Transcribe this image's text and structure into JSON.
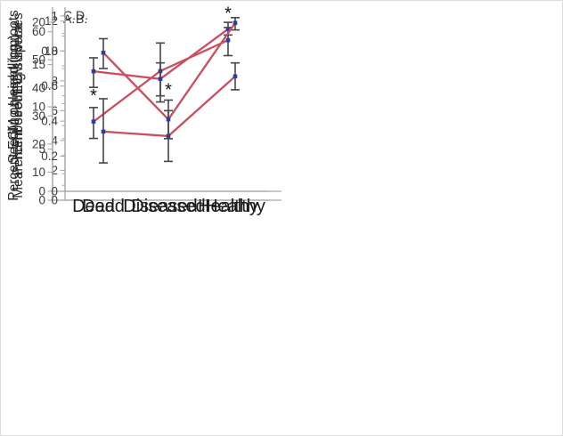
{
  "figure": {
    "type": "multi-panel-line-chart",
    "panels_grid": "2x2",
    "background": "#ffffff",
    "border_color": "#dcdcdc"
  },
  "colors": {
    "line": "#cb4e5e",
    "marker": "#2e3e9d",
    "error_bar": "#46464a",
    "axis": "#a9a9a9",
    "tick_text": "#3c3c3c",
    "category_text": "#1b1b1b",
    "ylabel_text": "#2a2a2a",
    "panel_letter_text": "#333333",
    "asterisk": "#111111"
  },
  "categories": [
    "Dead",
    "Diseased",
    "Healthy"
  ],
  "chart_data": [
    {
      "type": "line",
      "panel_letter": "A.",
      "ylabel": "Percent ECM on seedling roots",
      "categories": [
        "Dead",
        "Diseased",
        "Healthy"
      ],
      "values": [
        28,
        46,
        57
      ],
      "error_low": [
        22,
        35,
        51.5
      ],
      "error_high": [
        33,
        56,
        61.5
      ],
      "significance_asterisks": [
        {
          "category": "Dead",
          "y": 38
        }
      ],
      "yticks": [
        0,
        10,
        20,
        30,
        40,
        50,
        60
      ],
      "ylim": [
        0,
        67.5
      ],
      "minor_tick_step": null,
      "show_x_labels": false,
      "grid": false,
      "legend": false
    },
    {
      "type": "line",
      "panel_letter": "B.",
      "ylabel": "Mean number of ECM species",
      "categories": [
        "Dead",
        "Diseased",
        "Healthy"
      ],
      "values": [
        4.6,
        4.3,
        8.3
      ],
      "error_low": [
        2.5,
        2.6,
        7.4
      ],
      "error_high": [
        6.8,
        6.0,
        9.2
      ],
      "significance_asterisks": [],
      "yticks": [
        0,
        2,
        4,
        6,
        8,
        10,
        12
      ],
      "ylim": [
        0,
        12.7
      ],
      "minor_tick_step": 1,
      "show_x_labels": false,
      "grid": false,
      "legend": false
    },
    {
      "type": "line",
      "panel_letter": "C.",
      "ylabel": "Seedling Height (cm)",
      "categories": [
        "Dead",
        "Diseased",
        "Healthy"
      ],
      "values": [
        14.2,
        13.3,
        19.2
      ],
      "error_low": [
        12.3,
        11.3,
        18.5
      ],
      "error_high": [
        15.8,
        15.2,
        20.0
      ],
      "significance_asterisks": [
        {
          "category": "Healthy",
          "y": 21.3
        }
      ],
      "yticks": [
        0,
        5,
        10,
        15,
        20
      ],
      "ylim": [
        0,
        21.8
      ],
      "minor_tick_step": null,
      "show_x_labels": true,
      "grid": false,
      "legend": false
    },
    {
      "type": "line",
      "panel_letter": "D.",
      "ylabel": "Percent seedling survival",
      "categories": [
        "Dead",
        "Diseased",
        "Healthy"
      ],
      "values": [
        0.79,
        0.41,
        0.96
      ],
      "error_low": [
        0.7,
        0.3,
        0.92
      ],
      "error_high": [
        0.87,
        0.52,
        0.99
      ],
      "significance_asterisks": [
        {
          "category": "Diseased",
          "y": 0.59
        }
      ],
      "yticks": [
        0,
        0.2,
        0.4,
        0.6,
        0.8,
        1
      ],
      "ylim": [
        0,
        1.05
      ],
      "minor_tick_step": 0.1,
      "show_x_labels": true,
      "grid": false,
      "legend": false
    }
  ]
}
